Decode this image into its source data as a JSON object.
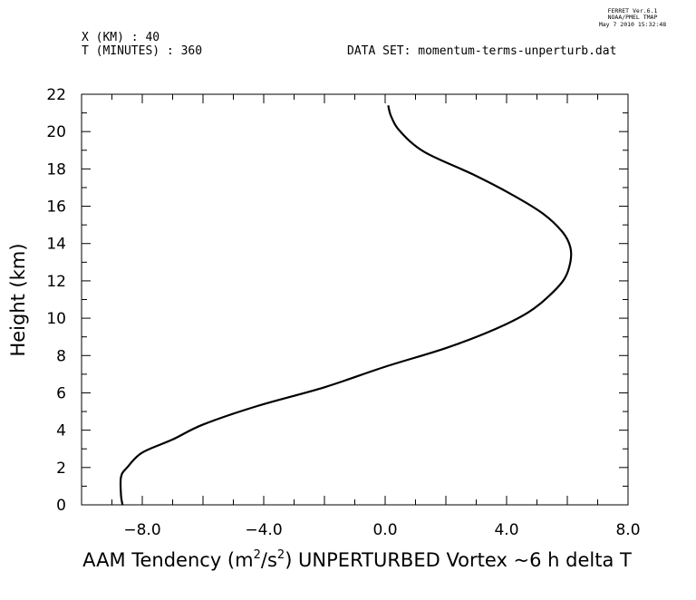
{
  "header": {
    "program_line1": "FERRET  Ver.6.1",
    "program_line2": "NOAA/PMEL TMAP",
    "program_line3": "May  7 2010 15:32:48",
    "x_line": "X (KM) : 40",
    "t_line": "T (MINUTES) : 360",
    "dataset_line": "DATA SET: momentum-terms-unperturb.dat"
  },
  "chart_data": {
    "type": "line",
    "xlabel_pre": "AAM Tendency (m",
    "xlabel_sup1": "2",
    "xlabel_mid": "/s",
    "xlabel_sup2": "2",
    "xlabel_post": ") UNPERTURBED Vortex ~6 h delta T",
    "ylabel": "Height (km)",
    "xlim": [
      -10,
      8
    ],
    "ylim": [
      0,
      22
    ],
    "x_tick_labels": [
      "-8.0",
      "-4.0",
      "0.0",
      "4.0",
      "8.0"
    ],
    "y_tick_labels": [
      "0",
      "2",
      "4",
      "6",
      "8",
      "10",
      "12",
      "14",
      "16",
      "18",
      "20",
      "22"
    ],
    "grid": false,
    "series": [
      {
        "color": "#000000",
        "x": [
          -8.65,
          -8.7,
          -8.7,
          -8.5,
          -8.0,
          -7.0,
          -6.0,
          -4.2,
          -2.0,
          0.0,
          2.0,
          3.6,
          4.7,
          5.4,
          5.9,
          6.1,
          6.1,
          5.85,
          5.2,
          4.2,
          2.9,
          1.3,
          0.5,
          0.2,
          0.1
        ],
        "y": [
          0.0,
          0.5,
          1.5,
          2.0,
          2.8,
          3.5,
          4.3,
          5.3,
          6.3,
          7.4,
          8.4,
          9.4,
          10.3,
          11.2,
          12.1,
          13.0,
          13.8,
          14.6,
          15.6,
          16.6,
          17.7,
          18.9,
          20.0,
          20.8,
          21.4
        ]
      }
    ]
  }
}
